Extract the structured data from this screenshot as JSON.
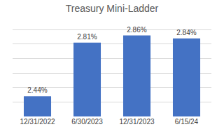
{
  "chart_data": {
    "type": "bar",
    "title": "Treasury Mini-Ladder",
    "categories": [
      "12/31/2022",
      "6/30/2023",
      "12/31/2023",
      "6/15/24"
    ],
    "values": [
      2.44,
      2.81,
      2.86,
      2.84
    ],
    "value_labels": [
      "2.44%",
      "2.81%",
      "2.86%",
      "2.84%"
    ],
    "color": "#4472c4",
    "ylim": [
      2.3,
      2.95
    ],
    "yticks": [
      2.3,
      2.4,
      2.5,
      2.6,
      2.7,
      2.8,
      2.9
    ],
    "grid": true,
    "data_labels": true,
    "tick_labels": "x"
  }
}
